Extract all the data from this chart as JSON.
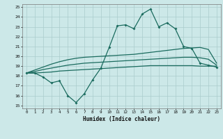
{
  "x": [
    0,
    1,
    2,
    3,
    4,
    5,
    6,
    7,
    8,
    9,
    10,
    11,
    12,
    13,
    14,
    15,
    16,
    17,
    18,
    19,
    20,
    21,
    22,
    23
  ],
  "line_main": [
    18.3,
    18.3,
    17.9,
    17.3,
    17.5,
    16.0,
    15.3,
    16.2,
    17.6,
    18.8,
    20.9,
    23.1,
    23.2,
    22.8,
    24.3,
    24.8,
    23.0,
    23.4,
    22.8,
    21.0,
    20.8,
    19.3,
    19.1,
    18.9
  ],
  "line_upper": [
    18.3,
    18.6,
    18.9,
    19.2,
    19.45,
    19.65,
    19.8,
    19.9,
    19.95,
    20.0,
    20.05,
    20.1,
    20.15,
    20.2,
    20.3,
    20.4,
    20.5,
    20.6,
    20.7,
    20.8,
    20.85,
    20.9,
    20.7,
    19.3
  ],
  "line_mid": [
    18.3,
    18.45,
    18.65,
    18.8,
    18.95,
    19.1,
    19.2,
    19.3,
    19.35,
    19.4,
    19.45,
    19.5,
    19.55,
    19.6,
    19.65,
    19.7,
    19.75,
    19.8,
    19.85,
    19.9,
    19.9,
    19.85,
    19.7,
    19.1
  ],
  "line_lower": [
    18.3,
    18.3,
    18.35,
    18.4,
    18.5,
    18.55,
    18.6,
    18.65,
    18.7,
    18.75,
    18.8,
    18.85,
    18.9,
    18.95,
    19.0,
    19.05,
    19.05,
    19.05,
    19.05,
    19.05,
    19.05,
    19.0,
    19.0,
    19.0
  ],
  "line_color": "#1a6b5e",
  "bg_color": "#cce8e8",
  "grid_color": "#aacccc",
  "xlabel": "Humidex (Indice chaleur)",
  "ylabel_ticks": [
    15,
    16,
    17,
    18,
    19,
    20,
    21,
    22,
    23,
    24,
    25
  ],
  "ylim": [
    14.7,
    25.3
  ],
  "xlim": [
    -0.5,
    23.5
  ]
}
